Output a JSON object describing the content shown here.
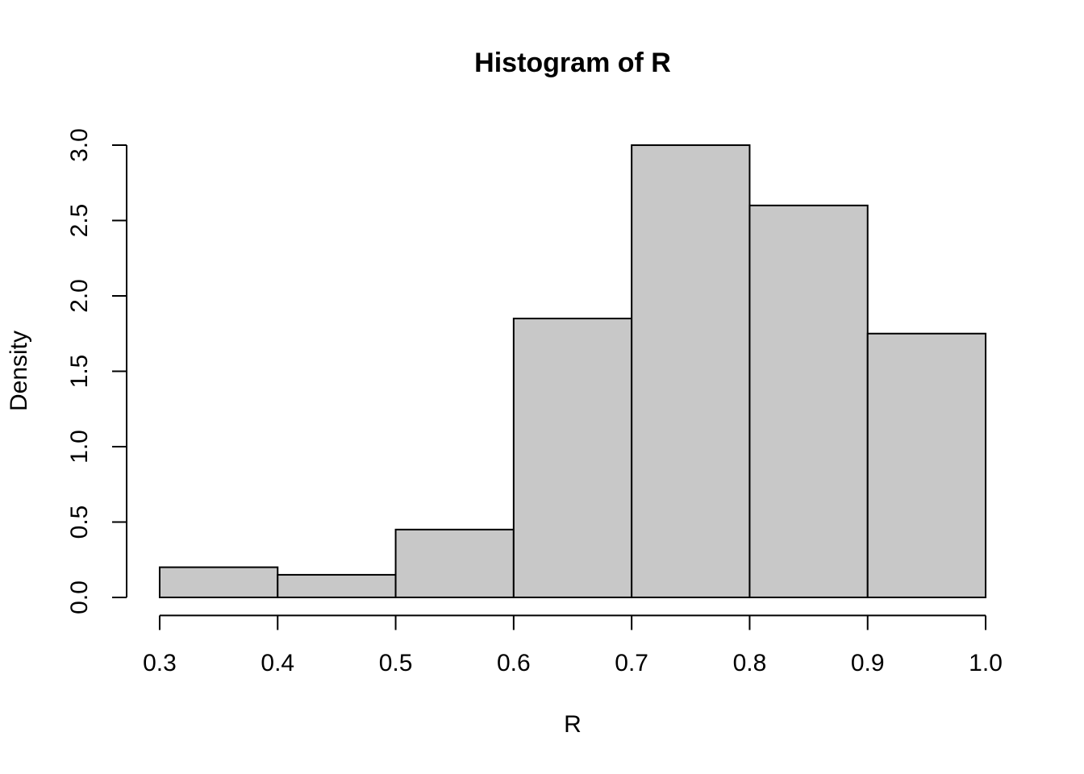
{
  "chart_data": {
    "type": "histogram",
    "title": "Histogram of R",
    "x_label": "R",
    "y_label": "Density",
    "bins": [
      0.3,
      0.4,
      0.5,
      0.6,
      0.7,
      0.8,
      0.9,
      1.0
    ],
    "values": [
      0.2,
      0.15,
      0.45,
      1.85,
      3.0,
      2.6,
      1.75
    ],
    "color": "#c8c8c8",
    "xlim": [
      0.272,
      1.028
    ],
    "xticks": [
      0.3,
      0.4,
      0.5,
      0.6,
      0.7,
      0.8,
      0.9,
      {
        "value": 1,
        "label": "1.0"
      }
    ],
    "ylim": [
      -0.12,
      3.12
    ],
    "yticks": [
      {
        "value": 0,
        "label": "0.0"
      },
      0.5,
      {
        "value": 1,
        "label": "1.0"
      },
      1.5,
      {
        "value": 2,
        "label": "2.0"
      },
      2.5,
      {
        "value": 3,
        "label": "3.0"
      }
    ],
    "grid": false
  }
}
